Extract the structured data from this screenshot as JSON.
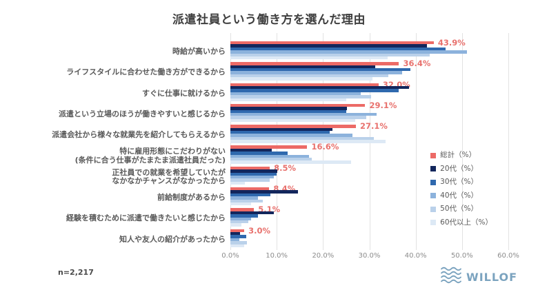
{
  "title": "派遣社員という働き方を選んだ理由",
  "footnote": "n=2,217",
  "logo": {
    "text": "WILLOF",
    "color": "#7ba3bf",
    "icon": "waves-icon"
  },
  "colors": {
    "value_label": "#e8716d",
    "gridline": "#e2e2e2",
    "category_label": "#595959",
    "tick_label": "#8c8c8c",
    "title": "#3f3f3f"
  },
  "chart_data": {
    "type": "bar",
    "orientation": "horizontal",
    "title": "派遣社員という働き方を選んだ理由",
    "xlabel": "",
    "ylabel": "",
    "xlim": [
      0,
      60
    ],
    "grid": true,
    "legend_position": "right",
    "x_ticks": [
      "0.0%",
      "10.0%",
      "20.0%",
      "30.0%",
      "40.0%",
      "50.0%",
      "60.0%"
    ],
    "categories": [
      "時給が高いから",
      "ライフスタイルに合わせた働き方ができるから",
      "すぐに仕事に就けるから",
      "派遣という立場のほうが働きやすいと感じるから",
      "派遣会社から様々な就業先を紹介してもらえるから",
      "特に雇用形態にこだわりがない\n(条件に合う仕事がたまたま派遣社員だった)",
      "正社員での就業を希望していたが\nなかなかチャンスがなかったから",
      "前給制度があるから",
      "経験を積むために派遣で働きたいと感じたから",
      "知人や友人の紹介があったから"
    ],
    "value_labels": [
      "43.9%",
      "36.4%",
      "32.0%",
      "29.1%",
      "27.1%",
      "16.6%",
      "8.5%",
      "8.4%",
      "5.1%",
      "3.0%"
    ],
    "legend": [
      "総計（%）",
      "20代（%）",
      "30代（%）",
      "40代（%）",
      "50代（%）",
      "60代以上（%）"
    ],
    "series": [
      {
        "name": "総計",
        "color": "#ec6a66",
        "values": [
          43.9,
          36.4,
          32.0,
          29.1,
          27.1,
          16.6,
          8.5,
          8.4,
          5.1,
          3.0
        ]
      },
      {
        "name": "20代",
        "color": "#12265c",
        "values": [
          42.5,
          31.2,
          38.5,
          25.1,
          22.0,
          9.0,
          10.1,
          14.6,
          9.4,
          2.1
        ]
      },
      {
        "name": "30代",
        "color": "#2f69ae",
        "values": [
          46.5,
          38.9,
          36.4,
          25.0,
          21.5,
          12.4,
          10.0,
          8.6,
          5.9,
          3.4
        ]
      },
      {
        "name": "40代",
        "color": "#8cb2dc",
        "values": [
          51.0,
          37.0,
          28.1,
          31.5,
          26.4,
          17.0,
          9.4,
          6.0,
          4.4,
          2.0
        ]
      },
      {
        "name": "50代",
        "color": "#bad1ea",
        "values": [
          43.0,
          34.1,
          30.4,
          29.4,
          30.9,
          17.5,
          8.5,
          7.0,
          3.9,
          3.5
        ]
      },
      {
        "name": "60代以上",
        "color": "#dde9f5",
        "values": [
          34.0,
          30.6,
          25.0,
          27.0,
          33.5,
          26.1,
          3.1,
          4.5,
          2.4,
          3.0
        ]
      }
    ]
  }
}
